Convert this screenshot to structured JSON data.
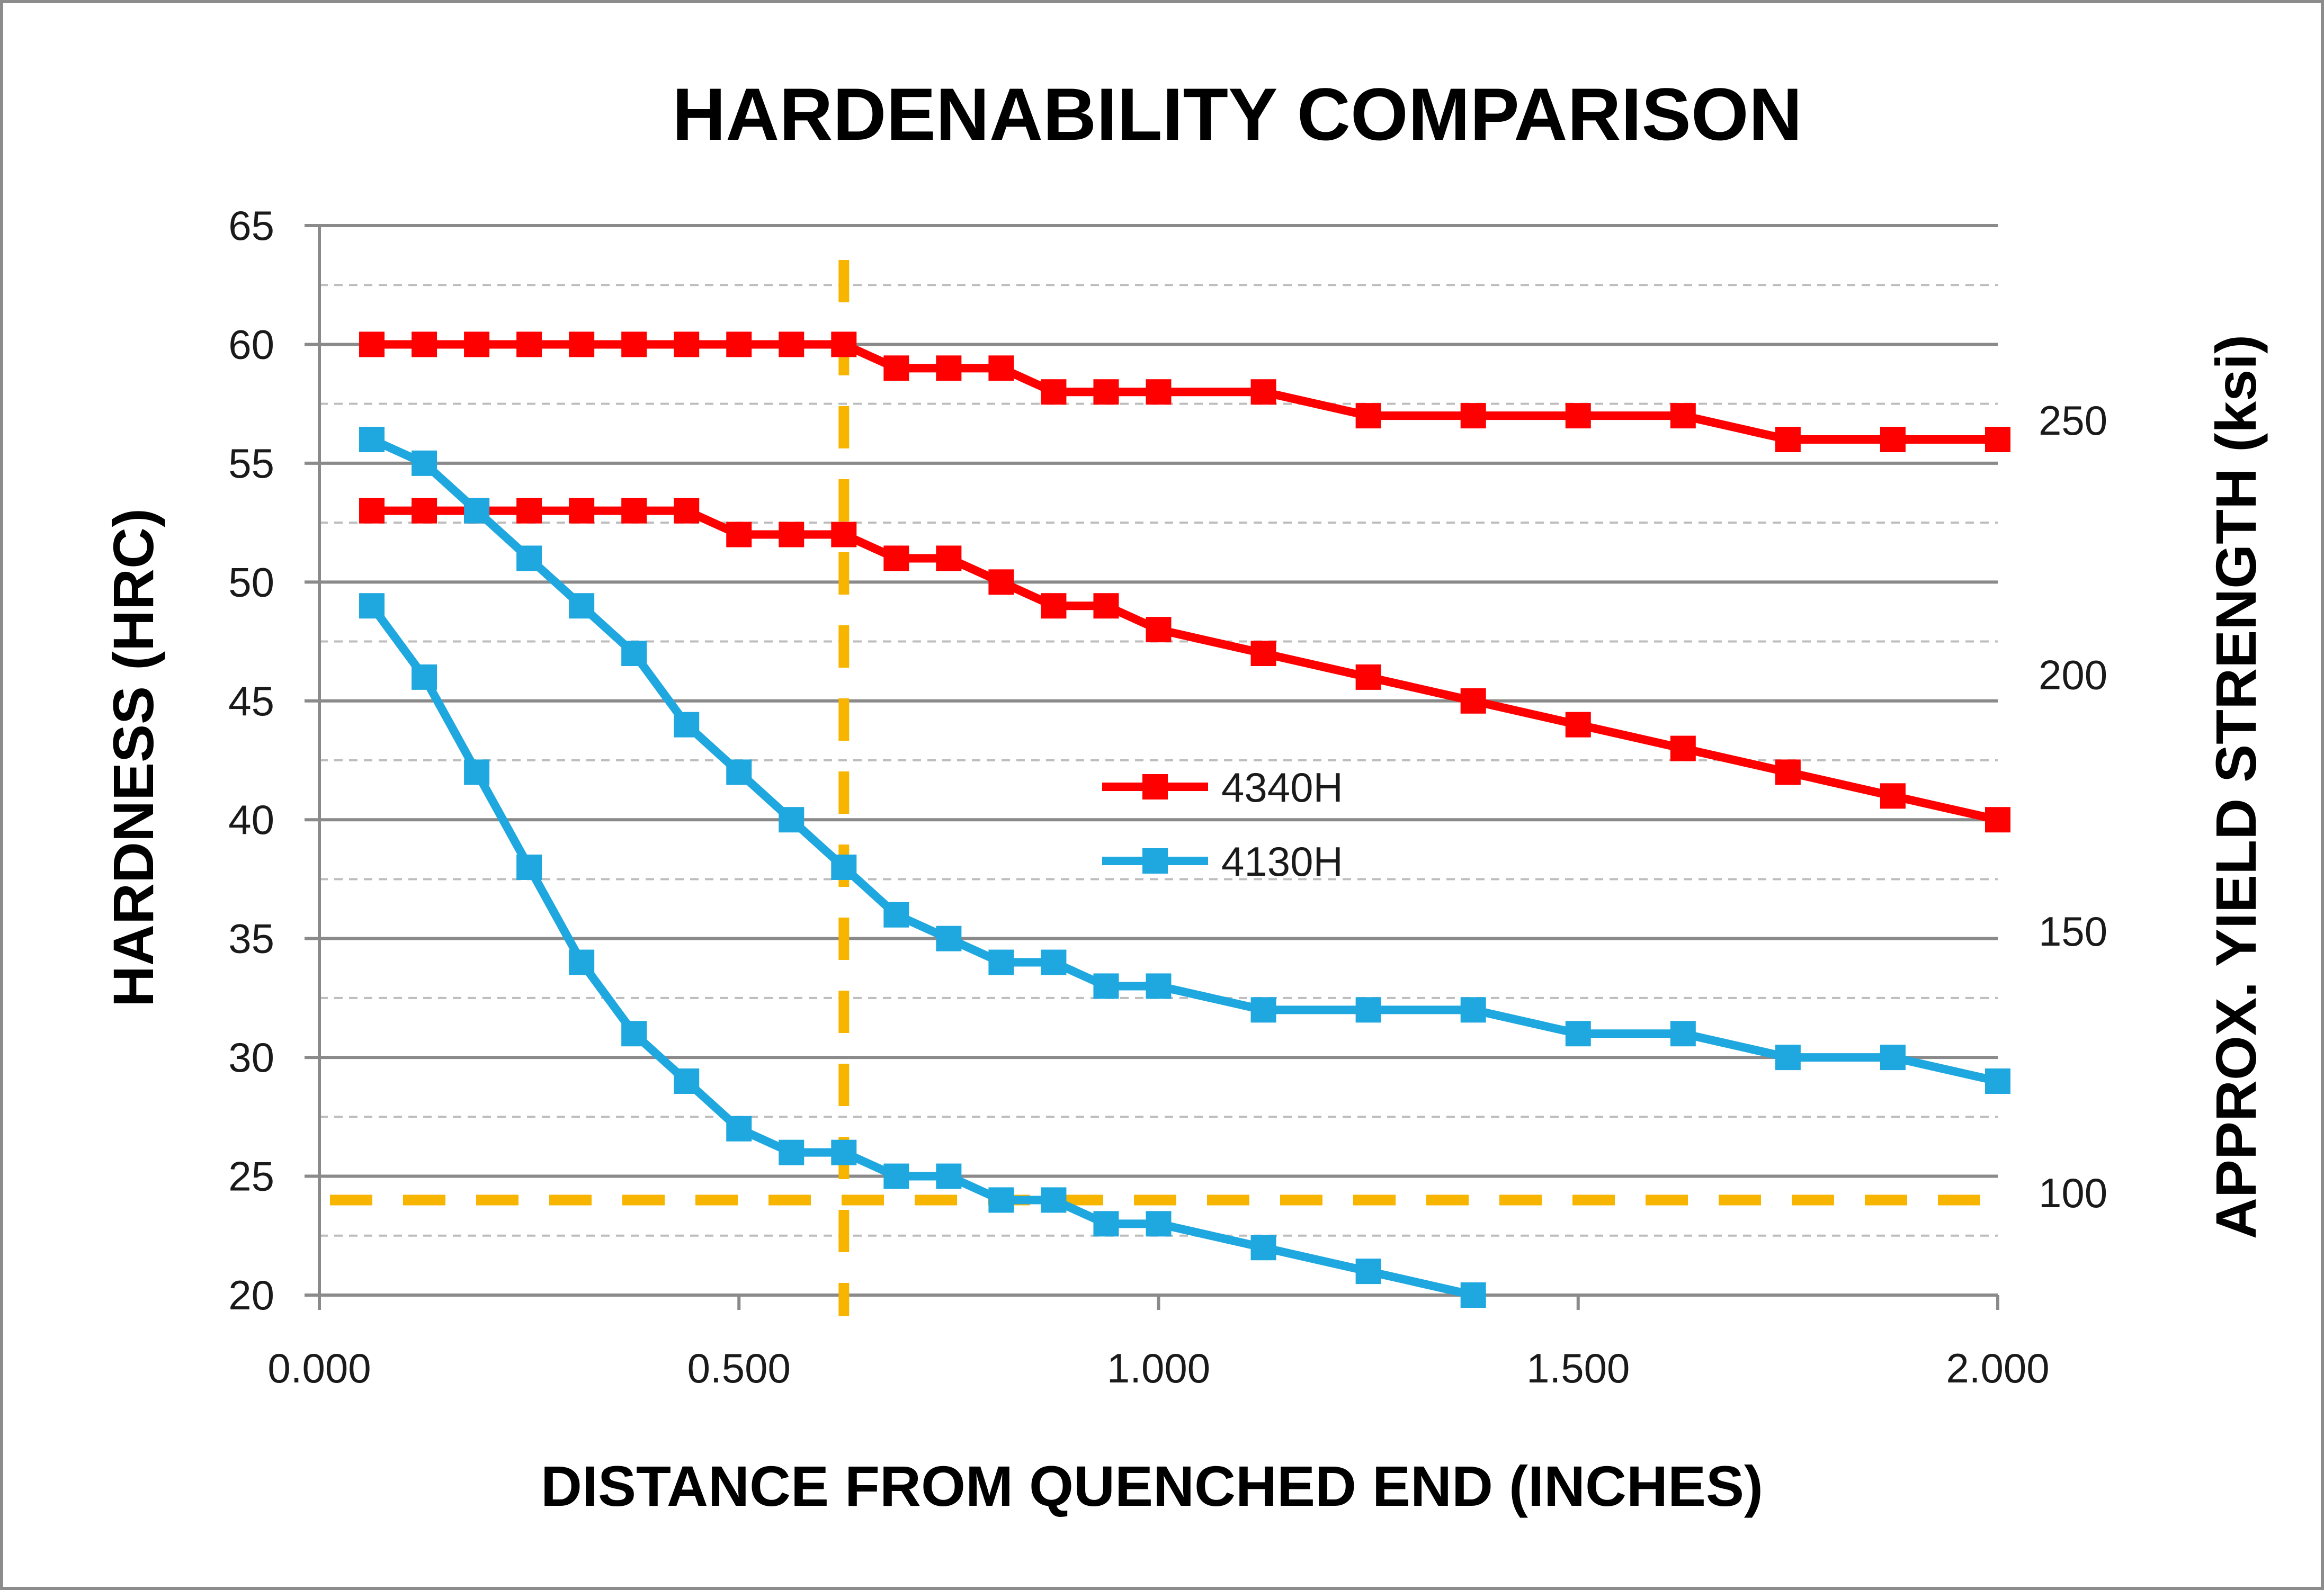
{
  "chart_data": {
    "type": "line",
    "title": "HARDENABILITY COMPARISON",
    "xlabel": "DISTANCE FROM QUENCHED END (INCHES)",
    "ylabel": "HARDNESS (HRC)",
    "y2label": "APPROX. YIELD STRENGTH (ksi)",
    "xlim": [
      0,
      2
    ],
    "ylim": [
      20,
      65
    ],
    "x_ticks": [
      "0.000",
      "0.500",
      "1.000",
      "1.500",
      "2.000"
    ],
    "y_ticks": [
      "20",
      "25",
      "30",
      "35",
      "40",
      "45",
      "50",
      "55",
      "60",
      "65"
    ],
    "y2_ticks": [
      {
        "label": "100",
        "at_hrc": 24.3
      },
      {
        "label": "150",
        "at_hrc": 35.3
      },
      {
        "label": "200",
        "at_hrc": 46.1
      },
      {
        "label": "250",
        "at_hrc": 56.8
      }
    ],
    "grid": true,
    "minor_grid": "dashed",
    "legend_position": "center",
    "series": [
      {
        "name": "4340H",
        "color": "#ff0000",
        "marker": "square",
        "x": [
          0.0625,
          0.125,
          0.1875,
          0.25,
          0.3125,
          0.375,
          0.4375,
          0.5,
          0.5625,
          0.625,
          0.6875,
          0.75,
          0.8125,
          0.875,
          0.9375,
          1.0,
          1.125,
          1.25,
          1.375,
          1.5,
          1.625,
          1.75,
          1.875,
          2.0
        ],
        "y": [
          60,
          60,
          60,
          60,
          60,
          60,
          60,
          60,
          60,
          60,
          59,
          59,
          59,
          58,
          58,
          58,
          58,
          57,
          57,
          57,
          57,
          56,
          56,
          56
        ]
      },
      {
        "name": "",
        "color": "#ff0000",
        "marker": "square",
        "x": [
          0.0625,
          0.125,
          0.1875,
          0.25,
          0.3125,
          0.375,
          0.4375,
          0.5,
          0.5625,
          0.625,
          0.6875,
          0.75,
          0.8125,
          0.875,
          0.9375,
          1.0,
          1.125,
          1.25,
          1.375,
          1.5,
          1.625,
          1.75,
          1.875,
          2.0
        ],
        "y": [
          53,
          53,
          53,
          53,
          53,
          53,
          53,
          52,
          52,
          52,
          51,
          51,
          50,
          49,
          49,
          48,
          47,
          46,
          45,
          44,
          43,
          42,
          41,
          40
        ]
      },
      {
        "name": "4130H",
        "color": "#1ea8df",
        "marker": "square",
        "x": [
          0.0625,
          0.125,
          0.1875,
          0.25,
          0.3125,
          0.375,
          0.4375,
          0.5,
          0.5625,
          0.625,
          0.6875,
          0.75,
          0.8125,
          0.875,
          0.9375,
          1.0,
          1.125,
          1.25,
          1.375,
          1.5,
          1.625,
          1.75,
          1.875,
          2.0
        ],
        "y": [
          56,
          55,
          53,
          51,
          49,
          47,
          44,
          42,
          40,
          38,
          36,
          35,
          34,
          34,
          33,
          33,
          32,
          32,
          32,
          31,
          31,
          30,
          30,
          29
        ]
      },
      {
        "name": "",
        "color": "#1ea8df",
        "marker": "square",
        "x": [
          0.0625,
          0.125,
          0.1875,
          0.25,
          0.3125,
          0.375,
          0.4375,
          0.5,
          0.5625,
          0.625,
          0.6875,
          0.75,
          0.8125,
          0.875,
          0.9375,
          1.0,
          1.125,
          1.25,
          1.375
        ],
        "y": [
          49,
          46,
          42,
          38,
          34,
          31,
          29,
          27,
          26,
          26,
          25,
          25,
          24,
          24,
          23,
          23,
          22,
          21,
          20
        ]
      }
    ],
    "reference_lines": [
      {
        "orientation": "vertical",
        "x": 0.625,
        "color": "#f7b500",
        "style": "dashed"
      },
      {
        "orientation": "horizontal",
        "y": 24,
        "color": "#f7b500",
        "style": "dashed"
      }
    ]
  }
}
